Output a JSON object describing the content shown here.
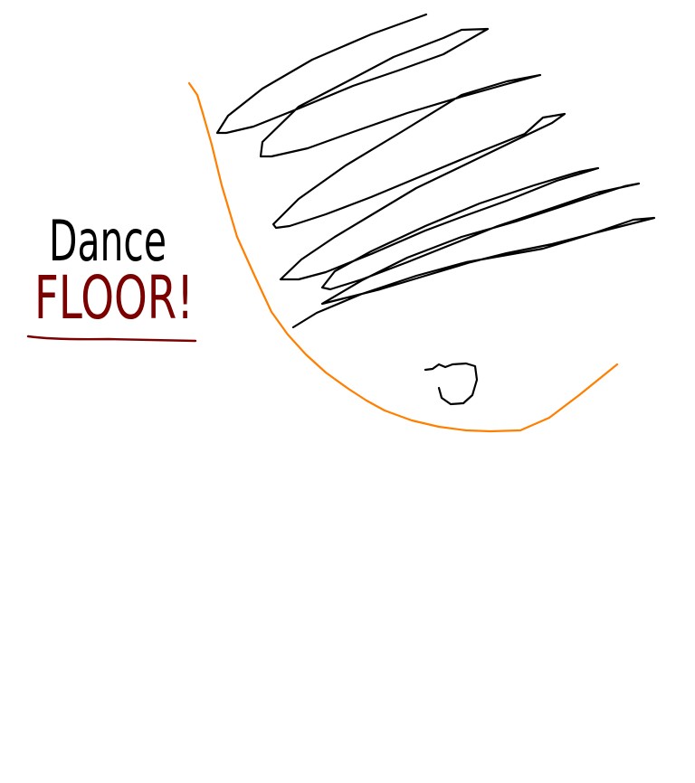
{
  "canvas": {
    "background": "#ffffff",
    "label_line1": "Dance",
    "label_line2": "FLOOR!",
    "colors": {
      "outline": "#ff7f00",
      "scribble": "#000000",
      "label_line1": "#000000",
      "label_line2": "#7b0000",
      "underline": "#7b0000"
    }
  }
}
